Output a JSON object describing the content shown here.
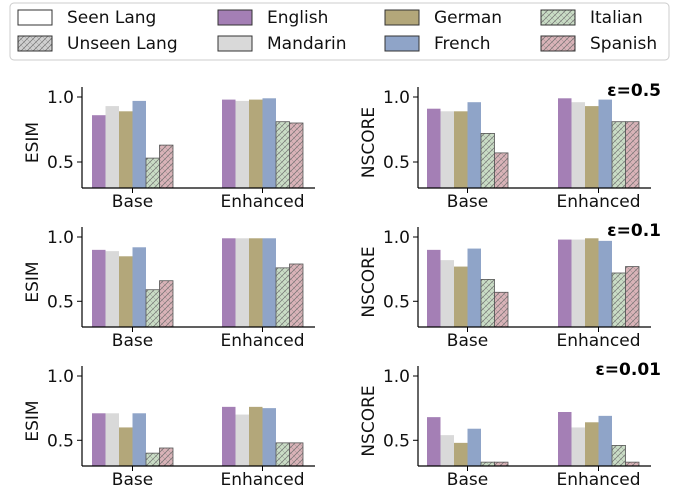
{
  "legend": {
    "placement": "top",
    "items": [
      {
        "label": "Seen Lang",
        "kind": "seen",
        "color": "#ffffff"
      },
      {
        "label": "English",
        "kind": "lang",
        "color": "#a47fb5"
      },
      {
        "label": "German",
        "kind": "lang",
        "color": "#b3a77a"
      },
      {
        "label": "Italian",
        "kind": "unseen",
        "color": "#c9dcc5"
      },
      {
        "label": "Unseen Lang",
        "kind": "unseen",
        "color": "#c8c8c8"
      },
      {
        "label": "Mandarin",
        "kind": "lang",
        "color": "#d9d9d9"
      },
      {
        "label": "French",
        "kind": "lang",
        "color": "#8fa4c8"
      },
      {
        "label": "Spanish",
        "kind": "unseen",
        "color": "#d9b3b8"
      }
    ]
  },
  "colors": {
    "English": "#a47fb5",
    "Mandarin": "#d9d9d9",
    "German": "#b3a77a",
    "French": "#8fa4c8",
    "Italian": "#c9dcc5",
    "Spanish": "#d9b3b8",
    "hatch": "#6f6f6f"
  },
  "chart_data": [
    {
      "type": "bar",
      "row": 0,
      "col": 0,
      "annotation": "",
      "ylabel": "ESIM",
      "ylim": [
        0.3,
        1.0
      ],
      "yticks": [
        "1.0",
        "0.5"
      ],
      "categories": [
        "Base",
        "Enhanced"
      ],
      "series": [
        {
          "name": "English",
          "values": [
            0.86,
            0.98
          ]
        },
        {
          "name": "Mandarin",
          "values": [
            0.93,
            0.97
          ]
        },
        {
          "name": "German",
          "values": [
            0.89,
            0.98
          ]
        },
        {
          "name": "French",
          "values": [
            0.97,
            0.99
          ]
        },
        {
          "name": "Italian",
          "values": [
            0.53,
            0.81
          ]
        },
        {
          "name": "Spanish",
          "values": [
            0.63,
            0.8
          ]
        }
      ]
    },
    {
      "type": "bar",
      "row": 0,
      "col": 1,
      "annotation": "ε=0.5",
      "ylabel": "NSCORE",
      "ylim": [
        0.3,
        1.0
      ],
      "yticks": [
        "1.0",
        "0.5"
      ],
      "categories": [
        "Base",
        "Enhanced"
      ],
      "series": [
        {
          "name": "English",
          "values": [
            0.91,
            0.99
          ]
        },
        {
          "name": "Mandarin",
          "values": [
            0.89,
            0.96
          ]
        },
        {
          "name": "German",
          "values": [
            0.89,
            0.93
          ]
        },
        {
          "name": "French",
          "values": [
            0.96,
            0.98
          ]
        },
        {
          "name": "Italian",
          "values": [
            0.72,
            0.81
          ]
        },
        {
          "name": "Spanish",
          "values": [
            0.57,
            0.81
          ]
        }
      ]
    },
    {
      "type": "bar",
      "row": 1,
      "col": 0,
      "annotation": "",
      "ylabel": "ESIM",
      "ylim": [
        0.3,
        1.0
      ],
      "yticks": [
        "1.0",
        "0.5"
      ],
      "categories": [
        "Base",
        "Enhanced"
      ],
      "series": [
        {
          "name": "English",
          "values": [
            0.9,
            0.99
          ]
        },
        {
          "name": "Mandarin",
          "values": [
            0.89,
            0.99
          ]
        },
        {
          "name": "German",
          "values": [
            0.85,
            0.99
          ]
        },
        {
          "name": "French",
          "values": [
            0.92,
            0.99
          ]
        },
        {
          "name": "Italian",
          "values": [
            0.59,
            0.76
          ]
        },
        {
          "name": "Spanish",
          "values": [
            0.66,
            0.79
          ]
        }
      ]
    },
    {
      "type": "bar",
      "row": 1,
      "col": 1,
      "annotation": "ε=0.1",
      "ylabel": "NSCORE",
      "ylim": [
        0.3,
        1.0
      ],
      "yticks": [
        "1.0",
        "0.5"
      ],
      "categories": [
        "Base",
        "Enhanced"
      ],
      "series": [
        {
          "name": "English",
          "values": [
            0.9,
            0.98
          ]
        },
        {
          "name": "Mandarin",
          "values": [
            0.82,
            0.98
          ]
        },
        {
          "name": "German",
          "values": [
            0.77,
            0.99
          ]
        },
        {
          "name": "French",
          "values": [
            0.91,
            0.97
          ]
        },
        {
          "name": "Italian",
          "values": [
            0.67,
            0.72
          ]
        },
        {
          "name": "Spanish",
          "values": [
            0.57,
            0.77
          ]
        }
      ]
    },
    {
      "type": "bar",
      "row": 2,
      "col": 0,
      "annotation": "",
      "ylabel": "ESIM",
      "ylim": [
        0.3,
        1.0
      ],
      "yticks": [
        "1.0",
        "0.5"
      ],
      "categories": [
        "Base",
        "Enhanced"
      ],
      "series": [
        {
          "name": "English",
          "values": [
            0.71,
            0.76
          ]
        },
        {
          "name": "Mandarin",
          "values": [
            0.71,
            0.7
          ]
        },
        {
          "name": "German",
          "values": [
            0.6,
            0.76
          ]
        },
        {
          "name": "French",
          "values": [
            0.71,
            0.75
          ]
        },
        {
          "name": "Italian",
          "values": [
            0.4,
            0.48
          ]
        },
        {
          "name": "Spanish",
          "values": [
            0.44,
            0.48
          ]
        }
      ]
    },
    {
      "type": "bar",
      "row": 2,
      "col": 1,
      "annotation": "ε=0.01",
      "ylabel": "NSCORE",
      "ylim": [
        0.3,
        1.0
      ],
      "yticks": [
        "1.0",
        "0.5"
      ],
      "categories": [
        "Base",
        "Enhanced"
      ],
      "series": [
        {
          "name": "English",
          "values": [
            0.68,
            0.72
          ]
        },
        {
          "name": "Mandarin",
          "values": [
            0.54,
            0.6
          ]
        },
        {
          "name": "German",
          "values": [
            0.48,
            0.64
          ]
        },
        {
          "name": "French",
          "values": [
            0.59,
            0.69
          ]
        },
        {
          "name": "Italian",
          "values": [
            0.33,
            0.46
          ]
        },
        {
          "name": "Spanish",
          "values": [
            0.33,
            0.33
          ]
        }
      ]
    }
  ]
}
